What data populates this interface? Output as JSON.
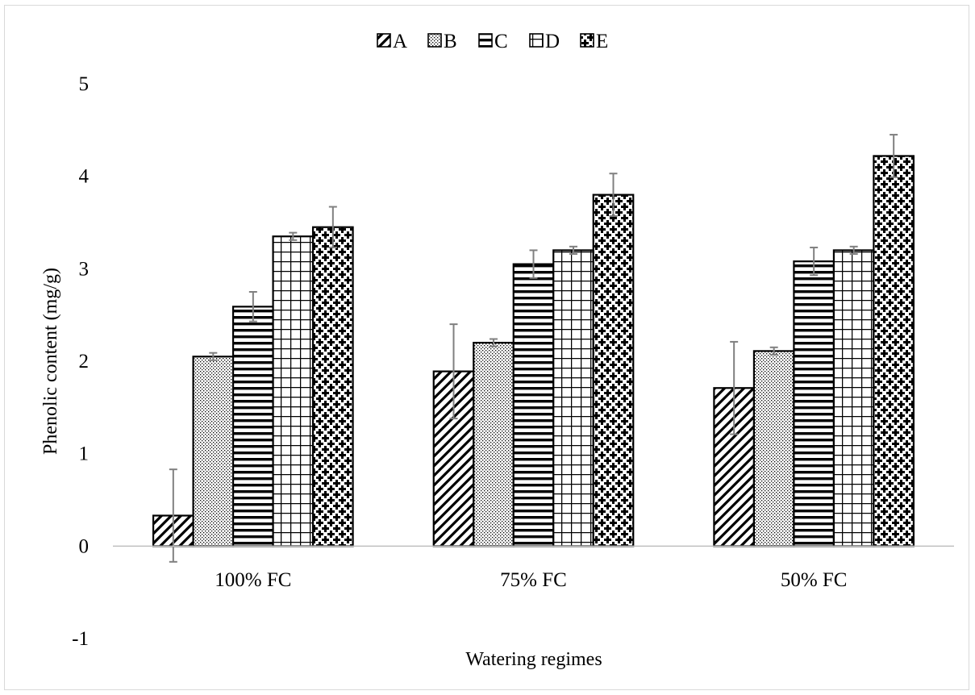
{
  "chart_data": {
    "type": "bar",
    "title": "",
    "xlabel": "Watering regimes",
    "ylabel": "Phenolic content (mg/g)",
    "ylim": [
      -1,
      5
    ],
    "yticks": [
      "-1",
      "0",
      "1",
      "2",
      "3",
      "4",
      "5"
    ],
    "grid": false,
    "legend_position": "top",
    "categories": [
      "100% FC",
      "75% FC",
      "50% FC"
    ],
    "series": [
      {
        "name": "A",
        "pattern": "diagonal-hatch",
        "values": [
          0.33,
          1.89,
          1.71
        ],
        "errors": [
          0.5,
          0.51,
          0.5
        ]
      },
      {
        "name": "B",
        "pattern": "fine-dots",
        "values": [
          2.05,
          2.2,
          2.11
        ],
        "errors": [
          0.04,
          0.04,
          0.04
        ]
      },
      {
        "name": "C",
        "pattern": "horizontal-lines",
        "values": [
          2.59,
          3.05,
          3.08
        ],
        "errors": [
          0.16,
          0.15,
          0.15
        ]
      },
      {
        "name": "D",
        "pattern": "grid",
        "values": [
          3.35,
          3.2,
          3.2
        ],
        "errors": [
          0.04,
          0.04,
          0.04
        ]
      },
      {
        "name": "E",
        "pattern": "checker-dots",
        "values": [
          3.45,
          3.8,
          4.22
        ],
        "errors": [
          0.22,
          0.23,
          0.23
        ]
      }
    ],
    "colors": {
      "bar_outline": "#000000",
      "error_bar": "#808080",
      "axis": "#bfbfbf"
    }
  }
}
